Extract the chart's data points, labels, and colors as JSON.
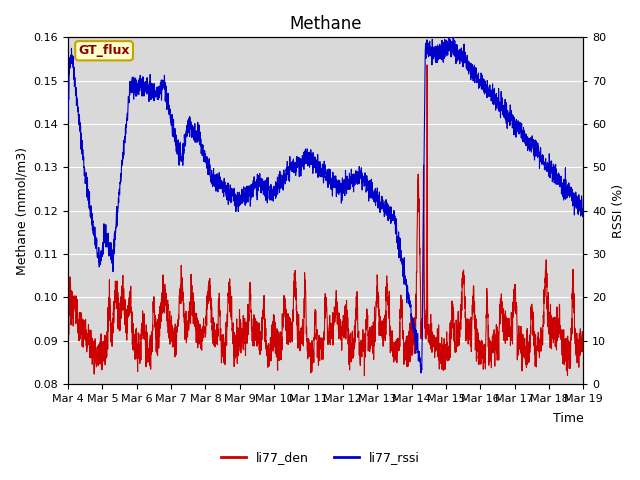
{
  "title": "Methane",
  "xlabel": "Time",
  "ylabel_left": "Methane (mmol/m3)",
  "ylabel_right": "RSSI (%)",
  "ylim_left": [
    0.08,
    0.16
  ],
  "ylim_right": [
    0,
    80
  ],
  "xtick_labels": [
    "Mar 4",
    "Mar 5",
    "Mar 6",
    "Mar 7",
    "Mar 8",
    "Mar 9",
    "Mar 10",
    "Mar 11",
    "Mar 12",
    "Mar 13",
    "Mar 14",
    "Mar 15",
    "Mar 16",
    "Mar 17",
    "Mar 18",
    "Mar 19"
  ],
  "color_den": "#cc0000",
  "color_rssi": "#0000cc",
  "legend_den": "li77_den",
  "legend_rssi": "li77_rssi",
  "gt_flux_label": "GT_flux",
  "bg_color": "#d9d9d9",
  "title_fontsize": 12,
  "axis_label_fontsize": 9,
  "tick_fontsize": 8,
  "linewidth": 0.8
}
